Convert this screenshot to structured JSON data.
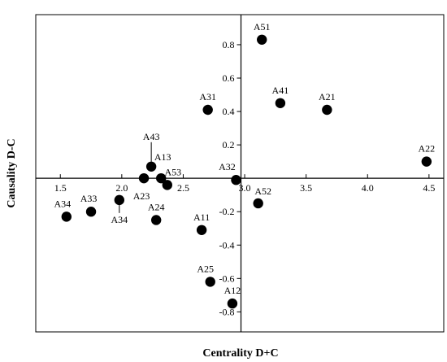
{
  "chart_data": {
    "type": "scatter",
    "xlabel": "Centrality D+C",
    "ylabel": "Causality D-C",
    "xlim": [
      1.3,
      4.62
    ],
    "ylim": [
      -0.92,
      0.98
    ],
    "x_ticks": [
      1.5,
      2.0,
      2.5,
      3.0,
      3.5,
      4.0,
      4.5
    ],
    "x_tick_labels": [
      "1.5",
      "2.0",
      "2.5",
      "3.0",
      "3.5",
      "4.0",
      "4.5"
    ],
    "y_ticks": [
      -0.8,
      -0.6,
      -0.4,
      -0.2,
      0.2,
      0.4,
      0.6,
      0.8
    ],
    "y_tick_labels": [
      "-0.8",
      "-0.6",
      "-0.4",
      "-0.2",
      "0.2",
      "0.4",
      "0.6",
      "0.8"
    ],
    "x_cross": 2.97,
    "y_cross": 0.0,
    "grid": false,
    "points": [
      {
        "label": "A51",
        "x": 3.14,
        "y": 0.83
      },
      {
        "label": "A41",
        "x": 3.29,
        "y": 0.45
      },
      {
        "label": "A21",
        "x": 3.67,
        "y": 0.41
      },
      {
        "label": "A31",
        "x": 2.7,
        "y": 0.41
      },
      {
        "label": "A22",
        "x": 4.48,
        "y": 0.1
      },
      {
        "label": "A43",
        "x": 2.24,
        "y": 0.07
      },
      {
        "label": "A13",
        "x": 2.32,
        "y": 0.0
      },
      {
        "label": "A53",
        "x": 2.37,
        "y": -0.04
      },
      {
        "label": "A23",
        "x": 2.18,
        "y": 0.0
      },
      {
        "label": "A32",
        "x": 2.93,
        "y": -0.01
      },
      {
        "label": "A52",
        "x": 3.11,
        "y": -0.15
      },
      {
        "label": "A34",
        "x": 1.98,
        "y": -0.13
      },
      {
        "label": "A33",
        "x": 1.75,
        "y": -0.2
      },
      {
        "label": "A34",
        "x": 1.55,
        "y": -0.23
      },
      {
        "label": "A24",
        "x": 2.28,
        "y": -0.25
      },
      {
        "label": "A11",
        "x": 2.65,
        "y": -0.31
      },
      {
        "label": "A25",
        "x": 2.72,
        "y": -0.62
      },
      {
        "label": "A12",
        "x": 2.9,
        "y": -0.75
      }
    ]
  }
}
